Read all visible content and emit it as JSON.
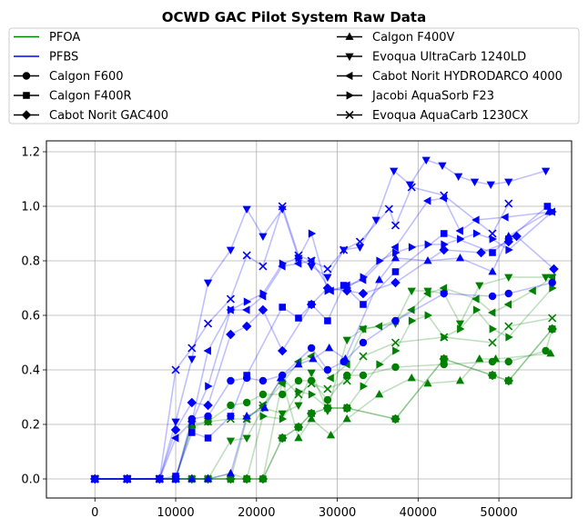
{
  "chart_data": {
    "type": "line",
    "title": "OCWD GAC Pilot System Raw Data",
    "xlabel": "",
    "ylabel": "",
    "xlim": [
      -6000,
      59000
    ],
    "ylim": [
      -0.07,
      1.24
    ],
    "xticks": [
      0,
      10000,
      20000,
      30000,
      40000,
      50000
    ],
    "yticks": [
      0.0,
      0.2,
      0.4,
      0.6,
      0.8,
      1.0,
      1.2
    ],
    "grid": true,
    "legend_position": "top",
    "colors": {
      "PFOA": "#008000",
      "PFBS": "#0000ff"
    },
    "legend": {
      "colors": [
        {
          "label": "PFOA",
          "color": "#008000"
        },
        {
          "label": "PFBS",
          "color": "#0000ff"
        }
      ],
      "media": [
        {
          "label": "Calgon F600",
          "marker": "circle"
        },
        {
          "label": "Calgon F400R",
          "marker": "square"
        },
        {
          "label": "Cabot Norit GAC400",
          "marker": "diamond"
        },
        {
          "label": "Calgon F400V",
          "marker": "triangle-up"
        },
        {
          "label": "Evoqua UltraCarb 1240LD",
          "marker": "triangle-down"
        },
        {
          "label": "Cabot Norit HYDRODARCO 4000",
          "marker": "triangle-left"
        },
        {
          "label": "Jacobi AquaSorb F23",
          "marker": "triangle-right"
        },
        {
          "label": "Evoqua AquaCarb 1230CX",
          "marker": "x"
        }
      ]
    },
    "series": [
      {
        "compound": "PFOA",
        "medium": "Calgon F600",
        "marker": "circle",
        "x": [
          0,
          4000,
          8000,
          10000,
          12000,
          14000,
          16800,
          18800,
          20800,
          23200,
          25200,
          26800,
          28800,
          31200,
          33200,
          37200,
          43200,
          49200,
          51200,
          55800,
          56600
        ],
        "y": [
          0.0,
          0.0,
          0.0,
          0.0,
          0.19,
          0.21,
          0.27,
          0.28,
          0.31,
          0.31,
          0.36,
          0.36,
          0.29,
          0.38,
          0.38,
          0.41,
          0.42,
          0.43,
          0.43,
          0.47,
          0.55
        ]
      },
      {
        "compound": "PFOA",
        "medium": "Calgon F400R",
        "marker": "square",
        "x": [
          0,
          4000,
          8000,
          10000,
          12000,
          14000,
          16800,
          18800,
          20800,
          23200,
          25200,
          26800,
          28800,
          31200,
          37200,
          43200,
          49200,
          51200,
          56600
        ],
        "y": [
          0.0,
          0.0,
          0.0,
          0.0,
          0.0,
          0.0,
          0.0,
          0.0,
          0.0,
          0.15,
          0.19,
          0.24,
          0.26,
          0.26,
          0.22,
          0.44,
          0.38,
          0.36,
          0.55
        ]
      },
      {
        "compound": "PFOA",
        "medium": "Cabot Norit GAC400",
        "marker": "diamond",
        "x": [
          0,
          4000,
          8000,
          10000,
          12000,
          14000,
          16800,
          18800,
          20800,
          23200,
          25200,
          26800,
          28800,
          31200,
          37200,
          43200,
          49200,
          51200,
          56600
        ],
        "y": [
          0.0,
          0.0,
          0.0,
          0.0,
          0.0,
          0.0,
          0.0,
          0.0,
          0.0,
          0.15,
          0.19,
          0.24,
          0.26,
          0.26,
          0.22,
          0.44,
          0.38,
          0.36,
          0.55
        ]
      },
      {
        "compound": "PFOA",
        "medium": "Calgon F400V",
        "marker": "triangle-up",
        "x": [
          0,
          4000,
          8000,
          10000,
          12000,
          14000,
          16800,
          18800,
          20800,
          23200,
          25200,
          26800,
          29200,
          31200,
          35200,
          39200,
          41200,
          45200,
          47600,
          49600,
          56400
        ],
        "y": [
          0.0,
          0.0,
          0.0,
          0.0,
          0.0,
          0.0,
          0.02,
          0.0,
          0.0,
          0.36,
          0.15,
          0.22,
          0.16,
          0.22,
          0.31,
          0.37,
          0.35,
          0.36,
          0.44,
          0.44,
          0.46
        ]
      },
      {
        "compound": "PFOA",
        "medium": "Evoqua UltraCarb 1240LD",
        "marker": "triangle-down",
        "x": [
          0,
          4000,
          8000,
          10000,
          12000,
          14000,
          16800,
          18800,
          20800,
          23200,
          25200,
          26800,
          28800,
          31200,
          33200,
          37200,
          39200,
          41200,
          43200,
          45200,
          47600,
          51200,
          55800,
          56600
        ],
        "y": [
          0.0,
          0.0,
          0.0,
          0.0,
          0.0,
          0.0,
          0.14,
          0.15,
          0.26,
          0.24,
          0.27,
          0.39,
          0.25,
          0.51,
          0.55,
          0.57,
          0.69,
          0.69,
          0.68,
          0.57,
          0.71,
          0.74,
          0.74,
          0.74
        ]
      },
      {
        "compound": "PFOA",
        "medium": "Cabot Norit HYDRODARCO 4000",
        "marker": "triangle-left",
        "x": [
          0,
          4000,
          8000,
          10000,
          12000,
          14000,
          16800,
          18800,
          20800,
          23200,
          25200,
          26800,
          29200,
          31200,
          33200,
          35200,
          37200,
          39200,
          41200,
          43200,
          47200,
          49200,
          51200,
          54200,
          56600
        ],
        "y": [
          0.0,
          0.0,
          0.0,
          0.0,
          0.0,
          0.0,
          0.0,
          0.22,
          0.27,
          0.35,
          0.43,
          0.45,
          0.37,
          0.42,
          0.55,
          0.56,
          0.58,
          0.62,
          0.68,
          0.7,
          0.66,
          0.61,
          0.64,
          0.69,
          0.74
        ]
      },
      {
        "compound": "PFOA",
        "medium": "Jacobi AquaSorb F23",
        "marker": "triangle-right",
        "x": [
          0,
          4000,
          8000,
          10000,
          12000,
          14000,
          16800,
          18800,
          20800,
          23200,
          25200,
          26800,
          28800,
          31200,
          33200,
          35200,
          37200,
          39200,
          41200,
          43200,
          45200,
          47200,
          49200,
          51200,
          56600
        ],
        "y": [
          0.0,
          0.0,
          0.0,
          0.0,
          0.0,
          0.0,
          0.0,
          0.0,
          0.23,
          0.22,
          0.32,
          0.31,
          0.26,
          0.26,
          0.34,
          0.42,
          0.47,
          0.58,
          0.6,
          0.52,
          0.55,
          0.62,
          0.55,
          0.52,
          0.7
        ]
      },
      {
        "compound": "PFOA",
        "medium": "Evoqua AquaCarb 1230CX",
        "marker": "x",
        "x": [
          0,
          4000,
          8000,
          10000,
          12000,
          14000,
          16800,
          18800,
          20800,
          23200,
          25200,
          26800,
          28800,
          31200,
          33200,
          37200,
          43200,
          49200,
          51200,
          56600
        ],
        "y": [
          0.0,
          0.0,
          0.0,
          0.0,
          0.2,
          0.21,
          0.22,
          0.22,
          0.27,
          0.37,
          0.31,
          0.35,
          0.33,
          0.36,
          0.45,
          0.5,
          0.52,
          0.5,
          0.56,
          0.59
        ]
      },
      {
        "compound": "PFBS",
        "medium": "Calgon F600",
        "marker": "circle",
        "x": [
          0,
          4000,
          8000,
          10000,
          12000,
          14000,
          16800,
          18800,
          20800,
          23200,
          26800,
          28800,
          30800,
          33200,
          37200,
          43200,
          49200,
          51200,
          56600
        ],
        "y": [
          0.0,
          0.0,
          0.0,
          0.0,
          0.22,
          0.23,
          0.36,
          0.37,
          0.36,
          0.38,
          0.48,
          0.4,
          0.43,
          0.5,
          0.58,
          0.68,
          0.67,
          0.68,
          0.72
        ]
      },
      {
        "compound": "PFBS",
        "medium": "Calgon F400R",
        "marker": "square",
        "x": [
          0,
          4000,
          8000,
          10000,
          12000,
          14000,
          16800,
          18800,
          23200,
          25200,
          26800,
          28800,
          30800,
          33200,
          37200,
          43200,
          49200,
          51200,
          56000
        ],
        "y": [
          0.0,
          0.0,
          0.0,
          0.01,
          0.17,
          0.15,
          0.23,
          0.38,
          0.63,
          0.59,
          0.64,
          0.58,
          0.71,
          0.64,
          0.76,
          0.9,
          0.83,
          0.88,
          1.0
        ]
      },
      {
        "compound": "PFBS",
        "medium": "Cabot Norit GAC400",
        "marker": "diamond",
        "x": [
          0,
          4000,
          8000,
          10000,
          12000,
          14000,
          16800,
          18800,
          20800,
          23200,
          26800,
          28800,
          31200,
          33200,
          37200,
          43200,
          47800,
          51200,
          52200,
          56800
        ],
        "y": [
          0.0,
          0.0,
          0.0,
          0.18,
          0.28,
          0.27,
          0.53,
          0.56,
          0.62,
          0.47,
          0.64,
          0.7,
          0.69,
          0.68,
          0.72,
          0.84,
          0.83,
          0.87,
          0.89,
          0.77
        ]
      },
      {
        "compound": "PFBS",
        "medium": "Calgon F400V",
        "marker": "triangle-up",
        "x": [
          0,
          4000,
          8000,
          10000,
          12000,
          14000,
          16800,
          18800,
          21000,
          23000,
          25200,
          27000,
          29000,
          31000,
          35200,
          37200,
          41200,
          45200,
          49200,
          51200,
          56200
        ],
        "y": [
          0.0,
          0.0,
          0.0,
          0.0,
          0.0,
          0.0,
          0.02,
          0.23,
          0.26,
          0.37,
          0.42,
          0.44,
          0.48,
          0.44,
          0.73,
          0.81,
          0.8,
          0.81,
          0.76,
          0.89,
          0.98
        ]
      },
      {
        "compound": "PFBS",
        "medium": "Evoqua UltraCarb 1240LD",
        "marker": "triangle-down",
        "x": [
          0,
          4000,
          8000,
          10000,
          12000,
          14000,
          16800,
          18800,
          20800,
          23200,
          25200,
          26800,
          28800,
          30800,
          32800,
          34800,
          37000,
          39000,
          41000,
          43000,
          45000,
          47000,
          49000,
          51200,
          55800
        ],
        "y": [
          0.0,
          0.0,
          0.0,
          0.21,
          0.44,
          0.72,
          0.84,
          0.99,
          0.89,
          0.99,
          0.81,
          0.78,
          0.74,
          0.84,
          0.85,
          0.95,
          1.13,
          1.08,
          1.17,
          1.15,
          1.11,
          1.09,
          1.08,
          1.09,
          1.13
        ]
      },
      {
        "compound": "PFBS",
        "medium": "Cabot Norit HYDRODARCO 4000",
        "marker": "triangle-left",
        "x": [
          0,
          4000,
          8000,
          10000,
          12000,
          14000,
          16800,
          18800,
          20800,
          23200,
          25200,
          26800,
          29200,
          31200,
          33200,
          37200,
          41200,
          43200,
          45200,
          47200,
          50800,
          56600
        ],
        "y": [
          0.0,
          0.0,
          0.0,
          0.15,
          0.21,
          0.47,
          0.62,
          0.62,
          0.67,
          0.78,
          0.79,
          0.8,
          0.69,
          0.71,
          0.73,
          0.85,
          1.02,
          1.03,
          0.91,
          0.95,
          0.96,
          0.98
        ]
      },
      {
        "compound": "PFBS",
        "medium": "Jacobi AquaSorb F23",
        "marker": "triangle-right",
        "x": [
          0,
          4000,
          8000,
          10000,
          12000,
          14000,
          16800,
          18800,
          20800,
          23200,
          25200,
          26800,
          28800,
          31200,
          33200,
          35200,
          37200,
          39200,
          41200,
          43200,
          45200,
          47200,
          49200,
          51200,
          56600
        ],
        "y": [
          0.0,
          0.0,
          0.0,
          0.0,
          0.21,
          0.34,
          0.62,
          0.65,
          0.68,
          0.79,
          0.81,
          0.9,
          0.69,
          0.7,
          0.74,
          0.8,
          0.83,
          0.85,
          0.86,
          0.86,
          0.88,
          0.9,
          0.88,
          0.84,
          0.98
        ]
      },
      {
        "compound": "PFBS",
        "medium": "Evoqua AquaCarb 1230CX",
        "marker": "x",
        "x": [
          0,
          4000,
          8000,
          10000,
          12000,
          14000,
          16800,
          18800,
          20800,
          23200,
          25200,
          26800,
          28800,
          30800,
          32800,
          36400,
          37200,
          39200,
          43200,
          49200,
          51200
        ],
        "y": [
          0.0,
          0.0,
          0.0,
          0.4,
          0.48,
          0.57,
          0.66,
          0.82,
          0.78,
          1.0,
          0.82,
          0.8,
          0.77,
          0.84,
          0.87,
          0.99,
          0.93,
          1.07,
          1.04,
          0.9,
          1.01
        ]
      }
    ]
  }
}
